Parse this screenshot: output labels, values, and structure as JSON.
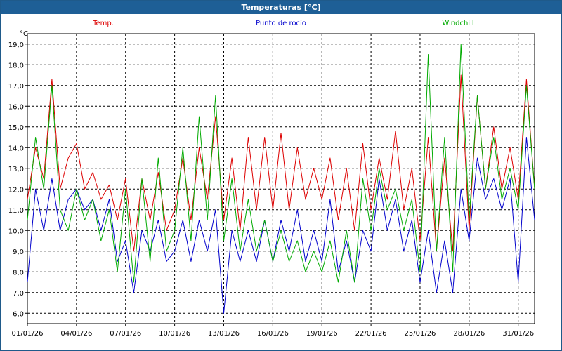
{
  "window": {
    "title": "Temperaturas [°C]"
  },
  "chart_data": {
    "type": "line",
    "title": "Temperaturas [°C]",
    "ylabel": "°C",
    "xlabel": "",
    "ylim": [
      5.5,
      19.5
    ],
    "yticks": [
      6.0,
      7.0,
      8.0,
      9.0,
      10.0,
      11.0,
      12.0,
      13.0,
      14.0,
      15.0,
      16.0,
      17.0,
      18.0,
      19.0
    ],
    "ytick_labels": [
      "6,0",
      "7,0",
      "8,0",
      "9,0",
      "10,0",
      "11,0",
      "12,0",
      "13,0",
      "14,0",
      "15,0",
      "16,0",
      "17,0",
      "18,0",
      "19,0"
    ],
    "xlim": [
      "2026-01-01",
      "2026-02-01"
    ],
    "xticks": [
      "2026-01-01",
      "2026-01-04",
      "2026-01-07",
      "2026-01-10",
      "2026-01-13",
      "2026-01-16",
      "2026-01-19",
      "2026-01-22",
      "2026-01-25",
      "2026-01-28",
      "2026-01-31"
    ],
    "xtick_labels": [
      "01/01/26",
      "04/01/26",
      "07/01/26",
      "10/01/26",
      "13/01/26",
      "16/01/26",
      "19/01/26",
      "22/01/26",
      "25/01/26",
      "28/01/26",
      "31/01/26"
    ],
    "grid": true,
    "legend_position": "top",
    "series": [
      {
        "name": "Temp.",
        "color": "#dd0000",
        "x": [
          "2026-01-01",
          "2026-01-01T12:00",
          "2026-01-02",
          "2026-01-02T12:00",
          "2026-01-03",
          "2026-01-03T12:00",
          "2026-01-04",
          "2026-01-04T12:00",
          "2026-01-05",
          "2026-01-05T12:00",
          "2026-01-06",
          "2026-01-06T12:00",
          "2026-01-07",
          "2026-01-07T12:00",
          "2026-01-08",
          "2026-01-08T12:00",
          "2026-01-09",
          "2026-01-09T12:00",
          "2026-01-10",
          "2026-01-10T12:00",
          "2026-01-11",
          "2026-01-11T12:00",
          "2026-01-12",
          "2026-01-12T12:00",
          "2026-01-13",
          "2026-01-13T12:00",
          "2026-01-14",
          "2026-01-14T12:00",
          "2026-01-15",
          "2026-01-15T12:00",
          "2026-01-16",
          "2026-01-16T12:00",
          "2026-01-17",
          "2026-01-17T12:00",
          "2026-01-18",
          "2026-01-18T12:00",
          "2026-01-19",
          "2026-01-19T12:00",
          "2026-01-20",
          "2026-01-20T12:00",
          "2026-01-21",
          "2026-01-21T12:00",
          "2026-01-22",
          "2026-01-22T12:00",
          "2026-01-23",
          "2026-01-23T12:00",
          "2026-01-24",
          "2026-01-24T12:00",
          "2026-01-25",
          "2026-01-25T12:00",
          "2026-01-26",
          "2026-01-26T12:00",
          "2026-01-27",
          "2026-01-27T12:00",
          "2026-01-28",
          "2026-01-28T12:00",
          "2026-01-29",
          "2026-01-29T12:00",
          "2026-01-30",
          "2026-01-30T12:00",
          "2026-01-31",
          "2026-01-31T12:00",
          "2026-02-01"
        ],
        "values": [
          11.5,
          14.0,
          12.5,
          17.3,
          12.0,
          13.5,
          14.2,
          12.0,
          12.8,
          11.5,
          12.2,
          10.5,
          12.5,
          9.0,
          12.5,
          10.5,
          12.8,
          10.0,
          11.0,
          13.5,
          10.5,
          14.0,
          11.5,
          15.5,
          10.5,
          13.5,
          10.0,
          14.5,
          11.0,
          14.5,
          11.0,
          14.7,
          11.0,
          14.0,
          11.5,
          13.0,
          11.5,
          13.5,
          10.5,
          13.0,
          10.0,
          14.2,
          11.0,
          13.5,
          11.5,
          14.8,
          11.0,
          13.0,
          9.5,
          14.5,
          9.0,
          13.5,
          9.0,
          17.5,
          10.0,
          16.5,
          12.0,
          15.0,
          12.0,
          14.0,
          11.5,
          17.3,
          12.0
        ]
      },
      {
        "name": "Punto de rocío",
        "color": "#0000cc",
        "x": [
          "2026-01-01",
          "2026-01-01T12:00",
          "2026-01-02",
          "2026-01-02T12:00",
          "2026-01-03",
          "2026-01-03T12:00",
          "2026-01-04",
          "2026-01-04T12:00",
          "2026-01-05",
          "2026-01-05T12:00",
          "2026-01-06",
          "2026-01-06T12:00",
          "2026-01-07",
          "2026-01-07T12:00",
          "2026-01-08",
          "2026-01-08T12:00",
          "2026-01-09",
          "2026-01-09T12:00",
          "2026-01-10",
          "2026-01-10T12:00",
          "2026-01-11",
          "2026-01-11T12:00",
          "2026-01-12",
          "2026-01-12T12:00",
          "2026-01-13",
          "2026-01-13T12:00",
          "2026-01-14",
          "2026-01-14T12:00",
          "2026-01-15",
          "2026-01-15T12:00",
          "2026-01-16",
          "2026-01-16T12:00",
          "2026-01-17",
          "2026-01-17T12:00",
          "2026-01-18",
          "2026-01-18T12:00",
          "2026-01-19",
          "2026-01-19T12:00",
          "2026-01-20",
          "2026-01-20T12:00",
          "2026-01-21",
          "2026-01-21T12:00",
          "2026-01-22",
          "2026-01-22T12:00",
          "2026-01-23",
          "2026-01-23T12:00",
          "2026-01-24",
          "2026-01-24T12:00",
          "2026-01-25",
          "2026-01-25T12:00",
          "2026-01-26",
          "2026-01-26T12:00",
          "2026-01-27",
          "2026-01-27T12:00",
          "2026-01-28",
          "2026-01-28T12:00",
          "2026-01-29",
          "2026-01-29T12:00",
          "2026-01-30",
          "2026-01-30T12:00",
          "2026-01-31",
          "2026-01-31T12:00",
          "2026-02-01"
        ],
        "values": [
          7.5,
          12.0,
          10.0,
          12.5,
          10.0,
          11.5,
          12.0,
          11.0,
          11.5,
          10.0,
          11.5,
          8.5,
          9.5,
          7.0,
          10.0,
          9.0,
          10.5,
          8.5,
          9.0,
          10.5,
          8.5,
          10.5,
          9.0,
          11.0,
          6.0,
          10.0,
          8.5,
          10.0,
          8.5,
          10.5,
          8.5,
          10.5,
          9.0,
          11.0,
          8.5,
          10.0,
          8.5,
          11.5,
          8.0,
          9.5,
          7.5,
          10.0,
          9.0,
          12.5,
          10.0,
          11.5,
          9.0,
          10.5,
          7.5,
          10.0,
          7.0,
          9.5,
          7.0,
          12.0,
          9.5,
          13.5,
          11.5,
          12.5,
          11.0,
          12.5,
          7.5,
          14.5,
          10.5
        ]
      },
      {
        "name": "Windchill",
        "color": "#00aa00",
        "x": [
          "2026-01-01",
          "2026-01-01T12:00",
          "2026-01-02",
          "2026-01-02T12:00",
          "2026-01-03",
          "2026-01-03T12:00",
          "2026-01-04",
          "2026-01-04T12:00",
          "2026-01-05",
          "2026-01-05T12:00",
          "2026-01-06",
          "2026-01-06T12:00",
          "2026-01-07",
          "2026-01-07T12:00",
          "2026-01-08",
          "2026-01-08T12:00",
          "2026-01-09",
          "2026-01-09T12:00",
          "2026-01-10",
          "2026-01-10T12:00",
          "2026-01-11",
          "2026-01-11T12:00",
          "2026-01-12",
          "2026-01-12T12:00",
          "2026-01-13",
          "2026-01-13T12:00",
          "2026-01-14",
          "2026-01-14T12:00",
          "2026-01-15",
          "2026-01-15T12:00",
          "2026-01-16",
          "2026-01-16T12:00",
          "2026-01-17",
          "2026-01-17T12:00",
          "2026-01-18",
          "2026-01-18T12:00",
          "2026-01-19",
          "2026-01-19T12:00",
          "2026-01-20",
          "2026-01-20T12:00",
          "2026-01-21",
          "2026-01-21T12:00",
          "2026-01-22",
          "2026-01-22T12:00",
          "2026-01-23",
          "2026-01-23T12:00",
          "2026-01-24",
          "2026-01-24T12:00",
          "2026-01-25",
          "2026-01-25T12:00",
          "2026-01-26",
          "2026-01-26T12:00",
          "2026-01-27",
          "2026-01-27T12:00",
          "2026-01-28",
          "2026-01-28T12:00",
          "2026-01-29",
          "2026-01-29T12:00",
          "2026-01-30",
          "2026-01-30T12:00",
          "2026-01-31",
          "2026-01-31T12:00",
          "2026-02-01"
        ],
        "values": [
          10.5,
          14.5,
          12.0,
          17.0,
          11.0,
          10.0,
          12.0,
          10.5,
          11.5,
          9.5,
          11.0,
          8.0,
          12.0,
          7.5,
          12.5,
          8.5,
          13.5,
          9.0,
          10.0,
          14.0,
          9.5,
          15.5,
          10.5,
          16.5,
          9.5,
          12.5,
          9.0,
          11.5,
          9.0,
          10.5,
          8.5,
          10.0,
          8.5,
          9.5,
          8.0,
          9.0,
          8.0,
          9.5,
          7.5,
          10.0,
          7.5,
          12.5,
          10.0,
          13.0,
          11.0,
          12.0,
          10.0,
          11.5,
          8.0,
          18.5,
          9.0,
          14.5,
          8.0,
          19.0,
          10.5,
          16.5,
          12.0,
          14.5,
          11.5,
          13.0,
          11.0,
          17.0,
          12.0
        ]
      }
    ]
  }
}
